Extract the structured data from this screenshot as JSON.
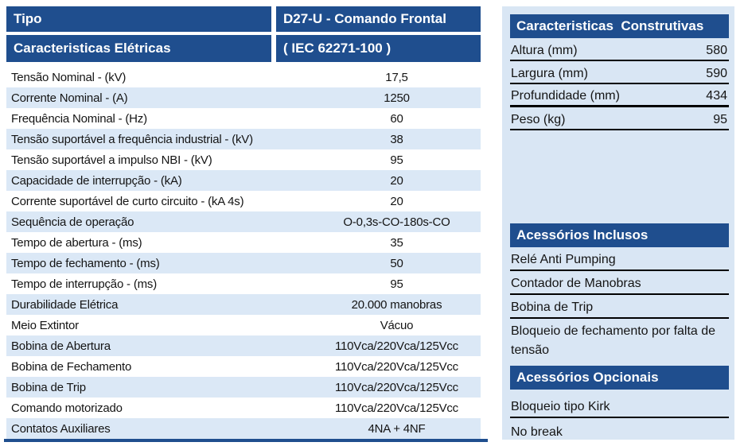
{
  "colors": {
    "header_blue": "#1F4E8E",
    "stripe_blue": "#DBE8F6",
    "panel_blue": "#D9E6F4",
    "rule_black": "#000000",
    "text": "#141414"
  },
  "left_table": {
    "header": {
      "type_label": "Tipo",
      "type_value": "D27-U - Comando Frontal",
      "section_label": "Caracteristicas Elétricas",
      "section_value": "( IEC 62271-100 )"
    },
    "rows": [
      {
        "label": "Tensão Nominal - (kV)",
        "value": "17,5"
      },
      {
        "label": "Corrente Nominal - (A)",
        "value": "1250"
      },
      {
        "label": "Frequência Nominal - (Hz)",
        "value": "60"
      },
      {
        "label": "Tensão suportável a frequência industrial - (kV)",
        "value": "38"
      },
      {
        "label": "Tensão suportável a impulso NBI - (kV)",
        "value": "95"
      },
      {
        "label": "Capacidade de interrupção - (kA)",
        "value": "20"
      },
      {
        "label": "Corrente suportável de curto circuito - (kA 4s)",
        "value": "20"
      },
      {
        "label": "Sequência de operação",
        "value": "O-0,3s-CO-180s-CO"
      },
      {
        "label": "Tempo de abertura - (ms)",
        "value": "35"
      },
      {
        "label": "Tempo de fechamento - (ms)",
        "value": "50"
      },
      {
        "label": "Tempo de interrupção - (ms)",
        "value": "95"
      },
      {
        "label": "Durabilidade Elétrica",
        "value": "20.000 manobras"
      },
      {
        "label": "Meio Extintor",
        "value": "Vácuo"
      },
      {
        "label": "Bobina de Abertura",
        "value": "110Vca/220Vca/125Vcc"
      },
      {
        "label": "Bobina de Fechamento",
        "value": "110Vca/220Vca/125Vcc"
      },
      {
        "label": "Bobina de Trip",
        "value": "110Vca/220Vca/125Vcc"
      },
      {
        "label": "Comando motorizado",
        "value": "110Vca/220Vca/125Vcc"
      },
      {
        "label": "Contatos Auxiliares",
        "value": "4NA + 4NF"
      }
    ]
  },
  "right_panel": {
    "construtivas": {
      "title": "Caracteristicas  Construtivas",
      "rows": [
        {
          "label": "Altura (mm)",
          "value": "580"
        },
        {
          "label": "Largura (mm)",
          "value": "590"
        },
        {
          "label": "Profundidade (mm)",
          "value": "434"
        },
        {
          "label": "Peso (kg)",
          "value": "95"
        }
      ]
    },
    "inclusos": {
      "title": "Acessórios Inclusos",
      "items": [
        "Relé Anti Pumping",
        "Contador de Manobras",
        "Bobina de Trip",
        "Bloqueio de fechamento por falta de tensão"
      ]
    },
    "opcionais": {
      "title": "Acessórios Opcionais",
      "items": [
        "Bloqueio tipo Kirk",
        "No break"
      ]
    }
  }
}
